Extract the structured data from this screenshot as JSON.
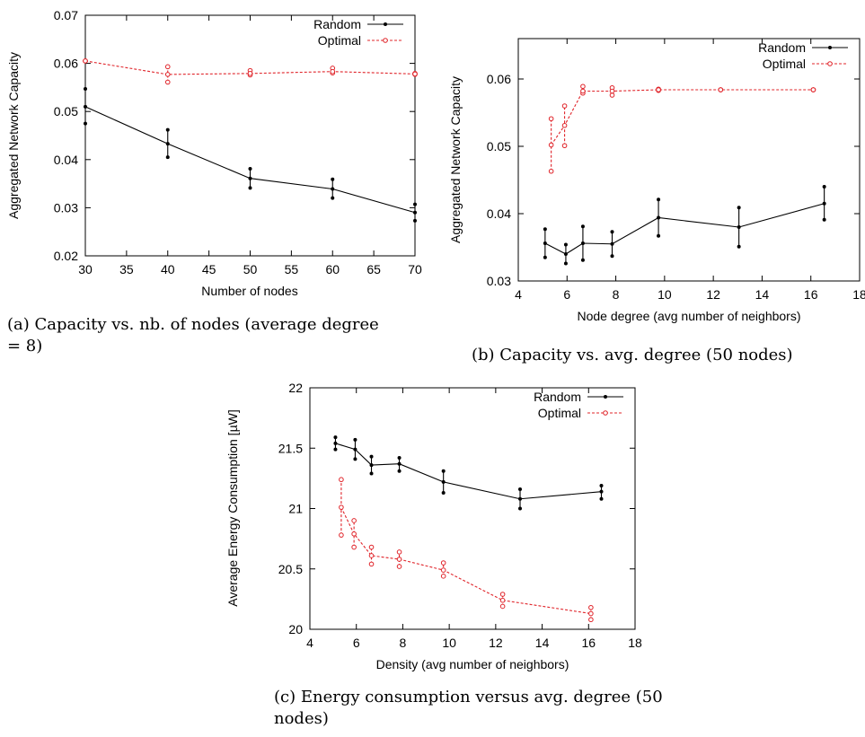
{
  "chart_data": [
    {
      "id": "a",
      "type": "line",
      "caption": "(a) Capacity vs. nb. of nodes (average degree = 8)",
      "xlabel": "Number of nodes",
      "ylabel": "Aggregated Network Capacity",
      "xlim": [
        30,
        70
      ],
      "ylim": [
        0.02,
        0.07
      ],
      "xticks": [
        30,
        35,
        40,
        45,
        50,
        55,
        60,
        65,
        70
      ],
      "yticks": [
        0.02,
        0.03,
        0.04,
        0.05,
        0.06,
        0.07
      ],
      "ytick_labels": [
        "0.02",
        "0.03",
        "0.04",
        "0.05",
        "0.06",
        "0.07"
      ],
      "legend_position": "top-right",
      "series": [
        {
          "name": "Random",
          "color": "#000000",
          "marker": "dot",
          "dashed": false,
          "x": [
            30,
            40,
            50,
            60,
            70
          ],
          "y": [
            0.051,
            0.0433,
            0.0361,
            0.0339,
            0.029
          ],
          "err_low": [
            0.0475,
            0.0405,
            0.0341,
            0.032,
            0.0273
          ],
          "err_high": [
            0.0547,
            0.0462,
            0.0381,
            0.0359,
            0.0307
          ]
        },
        {
          "name": "Optimal",
          "color": "#e0242a",
          "marker": "circle",
          "dashed": true,
          "x": [
            30,
            40,
            50,
            60,
            70
          ],
          "y": [
            0.0605,
            0.0577,
            0.0579,
            0.0583,
            0.0578
          ],
          "err_low": [
            0.0605,
            0.0561,
            0.0576,
            0.058,
            0.0577
          ],
          "err_high": [
            0.0605,
            0.0593,
            0.0585,
            0.059,
            0.0579
          ]
        }
      ]
    },
    {
      "id": "b",
      "type": "line",
      "caption": "(b) Capacity vs. avg. degree (50 nodes)",
      "xlabel": "Node degree (avg number of neighbors)",
      "ylabel": "Aggregated Network Capacity",
      "xlim": [
        4,
        18
      ],
      "ylim": [
        0.03,
        0.066
      ],
      "xticks": [
        4,
        6,
        8,
        10,
        12,
        14,
        16,
        18
      ],
      "yticks": [
        0.03,
        0.04,
        0.05,
        0.06
      ],
      "ytick_labels": [
        "0.03",
        "0.04",
        "0.05",
        "0.06"
      ],
      "legend_position": "top-right",
      "series": [
        {
          "name": "Random",
          "color": "#000000",
          "marker": "dot",
          "dashed": false,
          "x": [
            5.1,
            5.95,
            6.65,
            7.85,
            9.75,
            13.05,
            16.55
          ],
          "y": [
            0.0356,
            0.034,
            0.0356,
            0.0355,
            0.0394,
            0.038,
            0.0415
          ],
          "err_low": [
            0.0335,
            0.0326,
            0.0331,
            0.0337,
            0.0367,
            0.0351,
            0.0391
          ],
          "err_high": [
            0.0377,
            0.0354,
            0.0381,
            0.0373,
            0.0421,
            0.0409,
            0.044
          ]
        },
        {
          "name": "Optimal",
          "color": "#e0242a",
          "marker": "circle",
          "dashed": true,
          "x": [
            5.35,
            5.9,
            6.65,
            7.85,
            9.75,
            12.3,
            16.1
          ],
          "y": [
            0.0502,
            0.0531,
            0.0582,
            0.0582,
            0.0584,
            0.0584,
            0.0584
          ],
          "err_low": [
            0.0463,
            0.0501,
            0.0579,
            0.0576,
            0.0583,
            0.0584,
            0.0584
          ],
          "err_high": [
            0.0541,
            0.056,
            0.0589,
            0.0587,
            0.0585,
            0.0584,
            0.0584
          ]
        }
      ]
    },
    {
      "id": "c",
      "type": "line",
      "caption": "(c) Energy consumption versus avg. degree (50 nodes)",
      "xlabel": "Density (avg number of neighbors)",
      "ylabel": "Average Energy Consumption [µW]",
      "xlim": [
        4,
        18
      ],
      "ylim": [
        20,
        22
      ],
      "xticks": [
        4,
        6,
        8,
        10,
        12,
        14,
        16,
        18
      ],
      "yticks": [
        20,
        20.5,
        21,
        21.5,
        22
      ],
      "ytick_labels": [
        "20",
        "20.5",
        "21",
        "21.5",
        "22"
      ],
      "legend_position": "top-right",
      "series": [
        {
          "name": "Random",
          "color": "#000000",
          "marker": "dot",
          "dashed": false,
          "x": [
            5.1,
            5.95,
            6.65,
            7.85,
            9.75,
            13.05,
            16.55
          ],
          "y": [
            21.54,
            21.49,
            21.36,
            21.37,
            21.22,
            21.08,
            21.14
          ],
          "err_low": [
            21.49,
            21.41,
            21.29,
            21.31,
            21.13,
            21.0,
            21.08
          ],
          "err_high": [
            21.59,
            21.57,
            21.43,
            21.42,
            21.31,
            21.16,
            21.19
          ]
        },
        {
          "name": "Optimal",
          "color": "#e0242a",
          "marker": "circle",
          "dashed": true,
          "x": [
            5.35,
            5.9,
            6.65,
            7.85,
            9.75,
            12.3,
            16.1
          ],
          "y": [
            21.01,
            20.79,
            20.61,
            20.58,
            20.49,
            20.24,
            20.13
          ],
          "err_low": [
            20.78,
            20.68,
            20.54,
            20.52,
            20.44,
            20.19,
            20.08
          ],
          "err_high": [
            21.24,
            20.9,
            20.68,
            20.64,
            20.55,
            20.29,
            20.18
          ]
        }
      ]
    }
  ]
}
